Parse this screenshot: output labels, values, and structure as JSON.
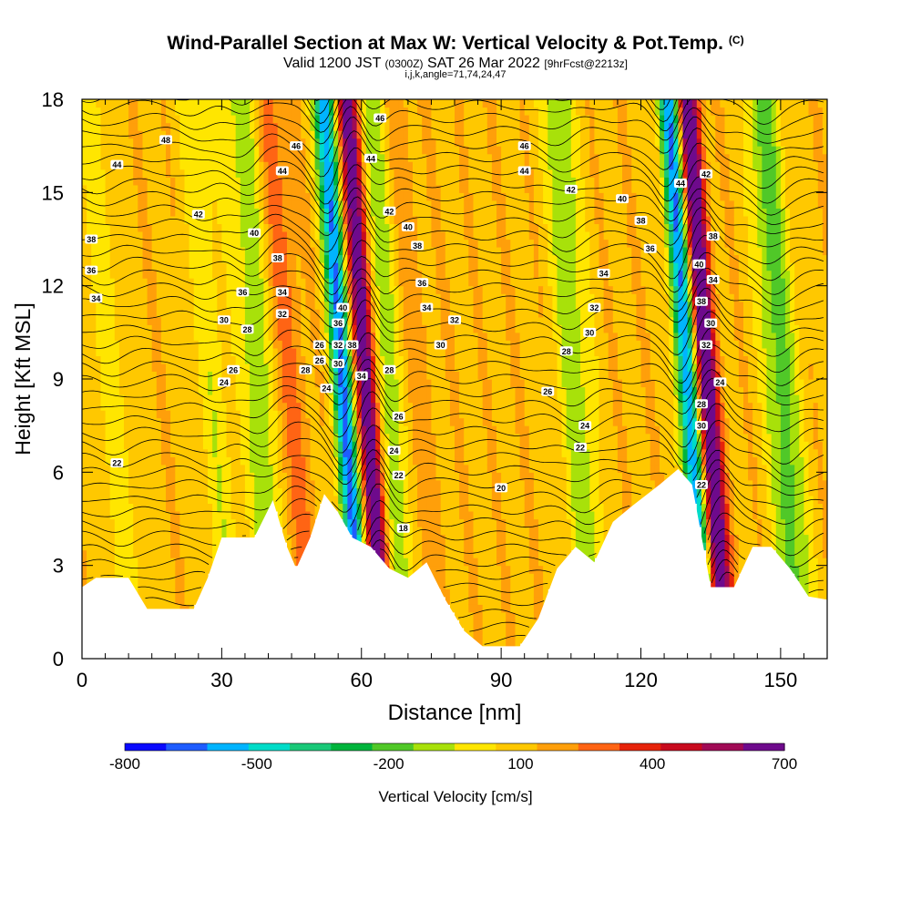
{
  "header": {
    "title": "Wind-Parallel Section at Max W: Vertical Velocity & Pot.Temp.",
    "title_mark": "(C)",
    "valid_prefix": "Valid 1200 JST",
    "valid_zulu": "(0300Z)",
    "valid_date": "SAT 26 Mar 2022",
    "forecast_tag": "[9hrFcst@2213z]",
    "indices": "i,j,k,angle=71,74,24,47"
  },
  "chart_data": {
    "type": "heatmap",
    "xlabel": "Distance [nm]",
    "ylabel": "Height [Kft MSL]",
    "xlim": [
      0,
      160
    ],
    "ylim": [
      0,
      18
    ],
    "xticks": [
      0,
      30,
      60,
      90,
      120,
      150
    ],
    "yticks": [
      0,
      3,
      6,
      9,
      12,
      15,
      18
    ],
    "terrain_kft": [
      [
        0,
        2.3
      ],
      [
        3,
        2.6
      ],
      [
        10,
        2.6
      ],
      [
        14,
        1.6
      ],
      [
        24,
        1.6
      ],
      [
        27,
        2.6
      ],
      [
        30,
        3.9
      ],
      [
        37,
        3.9
      ],
      [
        41,
        5.1
      ],
      [
        44,
        3.6
      ],
      [
        46,
        2.9
      ],
      [
        49,
        3.9
      ],
      [
        52,
        5.3
      ],
      [
        55,
        4.7
      ],
      [
        58,
        3.9
      ],
      [
        62,
        3.6
      ],
      [
        66,
        2.9
      ],
      [
        70,
        2.6
      ],
      [
        74,
        3.1
      ],
      [
        78,
        1.9
      ],
      [
        82,
        0.9
      ],
      [
        86,
        0.4
      ],
      [
        94,
        0.4
      ],
      [
        98,
        1.3
      ],
      [
        102,
        2.9
      ],
      [
        106,
        3.6
      ],
      [
        110,
        3.1
      ],
      [
        114,
        4.4
      ],
      [
        118,
        4.9
      ],
      [
        124,
        5.6
      ],
      [
        128,
        6.1
      ],
      [
        131,
        5.6
      ],
      [
        135,
        2.3
      ],
      [
        140,
        2.3
      ],
      [
        144,
        3.6
      ],
      [
        148,
        3.6
      ],
      [
        152,
        2.9
      ],
      [
        156,
        2.0
      ],
      [
        160,
        1.9
      ]
    ],
    "vertical_velocity_peaks": [
      {
        "x": 6,
        "w": -130
      },
      {
        "x": 28,
        "w": -150
      },
      {
        "x": 38,
        "w": -260
      },
      {
        "x": 44,
        "w": 160
      },
      {
        "x": 56,
        "w": -800
      },
      {
        "x": 61,
        "w": 740
      },
      {
        "x": 66,
        "w": -300
      },
      {
        "x": 70,
        "w": 130
      },
      {
        "x": 106,
        "w": -250
      },
      {
        "x": 130,
        "w": -800
      },
      {
        "x": 134,
        "w": 760
      },
      {
        "x": 150,
        "w": -330
      }
    ],
    "isentrope_labels": [
      {
        "x": 7.5,
        "y": 6.3,
        "text": "22"
      },
      {
        "x": 30.5,
        "y": 8.9,
        "text": "24"
      },
      {
        "x": 32.5,
        "y": 9.3,
        "text": "26"
      },
      {
        "x": 30.5,
        "y": 10.9,
        "text": "30"
      },
      {
        "x": 35.5,
        "y": 10.6,
        "text": "28"
      },
      {
        "x": 43,
        "y": 11.1,
        "text": "32"
      },
      {
        "x": 43,
        "y": 11.8,
        "text": "34"
      },
      {
        "x": 34.5,
        "y": 11.8,
        "text": "36"
      },
      {
        "x": 42,
        "y": 12.9,
        "text": "38"
      },
      {
        "x": 37,
        "y": 13.7,
        "text": "40"
      },
      {
        "x": 25,
        "y": 14.3,
        "text": "42"
      },
      {
        "x": 43,
        "y": 15.7,
        "text": "44"
      },
      {
        "x": 46,
        "y": 16.5,
        "text": "46"
      },
      {
        "x": 18,
        "y": 16.7,
        "text": "48"
      },
      {
        "x": 7.5,
        "y": 15.9,
        "text": "44"
      },
      {
        "x": 2,
        "y": 13.5,
        "text": "38"
      },
      {
        "x": 2,
        "y": 12.5,
        "text": "36"
      },
      {
        "x": 3,
        "y": 11.6,
        "text": "34"
      },
      {
        "x": 48,
        "y": 9.3,
        "text": "28"
      },
      {
        "x": 51,
        "y": 9.6,
        "text": "26"
      },
      {
        "x": 52.5,
        "y": 8.7,
        "text": "24"
      },
      {
        "x": 51,
        "y": 10.1,
        "text": "26"
      },
      {
        "x": 55,
        "y": 9.5,
        "text": "30"
      },
      {
        "x": 55,
        "y": 10.1,
        "text": "32"
      },
      {
        "x": 55,
        "y": 10.8,
        "text": "36"
      },
      {
        "x": 56,
        "y": 11.3,
        "text": "40"
      },
      {
        "x": 58,
        "y": 10.1,
        "text": "38"
      },
      {
        "x": 60,
        "y": 9.1,
        "text": "34"
      },
      {
        "x": 64,
        "y": 17.4,
        "text": "46"
      },
      {
        "x": 62,
        "y": 16.1,
        "text": "44"
      },
      {
        "x": 66,
        "y": 14.4,
        "text": "42"
      },
      {
        "x": 70,
        "y": 13.9,
        "text": "40"
      },
      {
        "x": 72,
        "y": 13.3,
        "text": "38"
      },
      {
        "x": 73,
        "y": 12.1,
        "text": "36"
      },
      {
        "x": 74,
        "y": 11.3,
        "text": "34"
      },
      {
        "x": 80,
        "y": 10.9,
        "text": "32"
      },
      {
        "x": 77,
        "y": 10.1,
        "text": "30"
      },
      {
        "x": 66,
        "y": 9.3,
        "text": "28"
      },
      {
        "x": 68,
        "y": 7.8,
        "text": "26"
      },
      {
        "x": 67,
        "y": 6.7,
        "text": "24"
      },
      {
        "x": 68,
        "y": 5.9,
        "text": "22"
      },
      {
        "x": 69,
        "y": 4.2,
        "text": "18"
      },
      {
        "x": 90,
        "y": 5.5,
        "text": "20"
      },
      {
        "x": 95,
        "y": 16.5,
        "text": "46"
      },
      {
        "x": 95,
        "y": 15.7,
        "text": "44"
      },
      {
        "x": 105,
        "y": 15.1,
        "text": "42"
      },
      {
        "x": 116,
        "y": 14.8,
        "text": "40"
      },
      {
        "x": 120,
        "y": 14.1,
        "text": "38"
      },
      {
        "x": 122,
        "y": 13.2,
        "text": "36"
      },
      {
        "x": 112,
        "y": 12.4,
        "text": "34"
      },
      {
        "x": 110,
        "y": 11.3,
        "text": "32"
      },
      {
        "x": 109,
        "y": 10.5,
        "text": "30"
      },
      {
        "x": 104,
        "y": 9.9,
        "text": "28"
      },
      {
        "x": 100,
        "y": 8.6,
        "text": "26"
      },
      {
        "x": 108,
        "y": 7.5,
        "text": "24"
      },
      {
        "x": 107,
        "y": 6.8,
        "text": "22"
      },
      {
        "x": 128.5,
        "y": 15.3,
        "text": "44"
      },
      {
        "x": 134,
        "y": 15.6,
        "text": "42"
      },
      {
        "x": 132.5,
        "y": 12.7,
        "text": "40"
      },
      {
        "x": 135.5,
        "y": 13.6,
        "text": "38"
      },
      {
        "x": 135.5,
        "y": 12.2,
        "text": "34"
      },
      {
        "x": 133,
        "y": 11.5,
        "text": "38"
      },
      {
        "x": 135,
        "y": 10.8,
        "text": "30"
      },
      {
        "x": 134,
        "y": 10.1,
        "text": "32"
      },
      {
        "x": 137,
        "y": 8.9,
        "text": "24"
      },
      {
        "x": 133,
        "y": 8.2,
        "text": "28"
      },
      {
        "x": 133,
        "y": 7.5,
        "text": "30"
      },
      {
        "x": 133,
        "y": 5.6,
        "text": "22"
      }
    ],
    "colorbar": {
      "label": "Vertical Velocity [cm/s]",
      "tick_labels": [
        "-800",
        "-500",
        "-200",
        "100",
        "400",
        "700"
      ],
      "colors": [
        "#0a0aff",
        "#1e5cff",
        "#00b4ff",
        "#00dcc8",
        "#19c878",
        "#00b43c",
        "#50c828",
        "#a8e10a",
        "#ffe600",
        "#ffc800",
        "#ff9f0a",
        "#ff6414",
        "#e6230a",
        "#c80a1e",
        "#a00a55",
        "#6e0a8c"
      ]
    }
  }
}
